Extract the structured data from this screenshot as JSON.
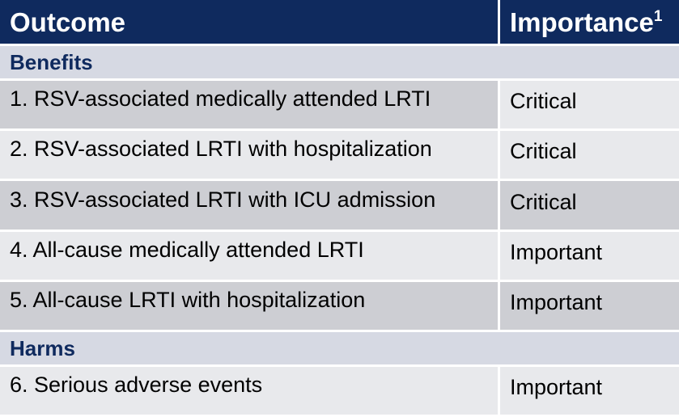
{
  "table": {
    "header": {
      "outcome": "Outcome",
      "importance": "Importance",
      "importance_footnote": "1"
    },
    "sections": [
      {
        "title": "Benefits",
        "rows": [
          {
            "outcome": "1. RSV-associated medically attended LRTI",
            "importance": "Critical"
          },
          {
            "outcome": "2. RSV-associated LRTI with hospitalization",
            "importance": "Critical"
          },
          {
            "outcome": "3. RSV-associated LRTI with ICU admission",
            "importance": "Critical"
          },
          {
            "outcome": "4. All-cause medically attended LRTI",
            "importance": "Important"
          },
          {
            "outcome": "5. All-cause LRTI with hospitalization",
            "importance": "Important"
          }
        ]
      },
      {
        "title": "Harms",
        "rows": [
          {
            "outcome": "6. Serious adverse events",
            "importance": "Important"
          }
        ]
      }
    ]
  },
  "colors": {
    "header_bg": "#0f2a5e",
    "header_text": "#ffffff",
    "section_bg": "#d6d9e3",
    "section_text": "#0f2a5e",
    "row_shade": "#cdced3",
    "row_light": "#e8e9ec"
  }
}
